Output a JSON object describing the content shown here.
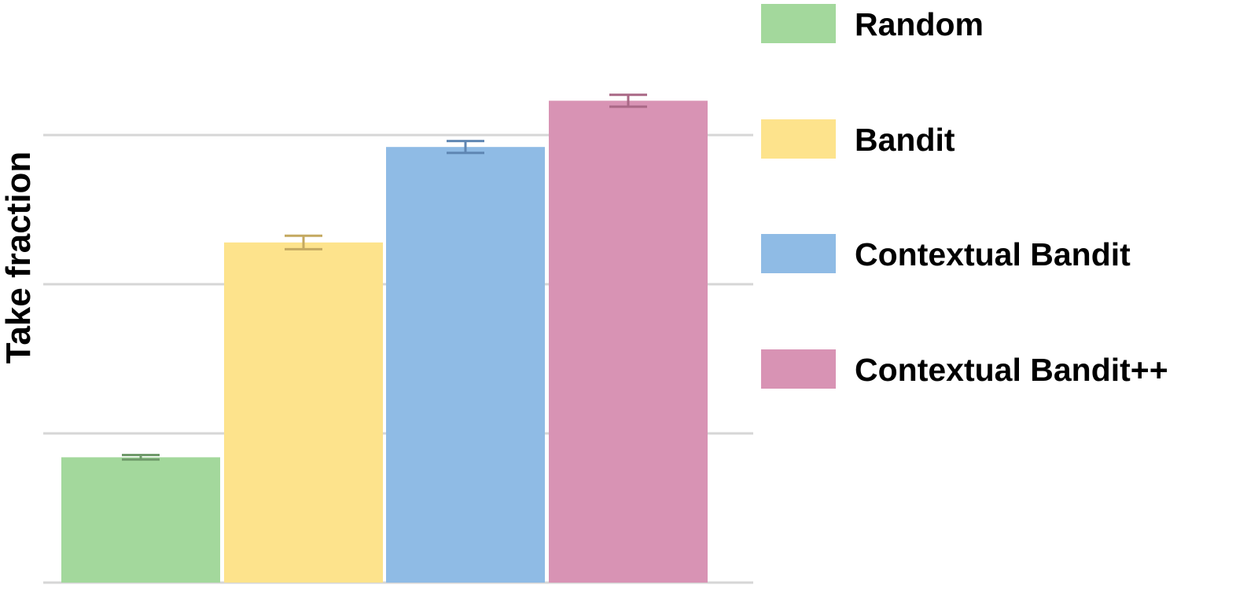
{
  "chart_data": {
    "type": "bar",
    "title": "",
    "xlabel": "",
    "ylabel": "Take fraction",
    "categories": [
      "Random",
      "Bandit",
      "Contextual Bandit",
      "Contextual Bandit++"
    ],
    "values": [
      0.84,
      2.28,
      2.92,
      3.23
    ],
    "errors": [
      0.015,
      0.045,
      0.04,
      0.04
    ],
    "colors": [
      "#a3d89c",
      "#fde38c",
      "#8fbbe5",
      "#d893b4"
    ],
    "error_colors": [
      "#6f9a6a",
      "#c4a960",
      "#5f86b3",
      "#a96886"
    ],
    "ylim": [
      0,
      3.9
    ],
    "gridlines": [
      0,
      1,
      2,
      3
    ],
    "grid": true,
    "y_tick_labels_shown": false,
    "legend_position": "right"
  }
}
